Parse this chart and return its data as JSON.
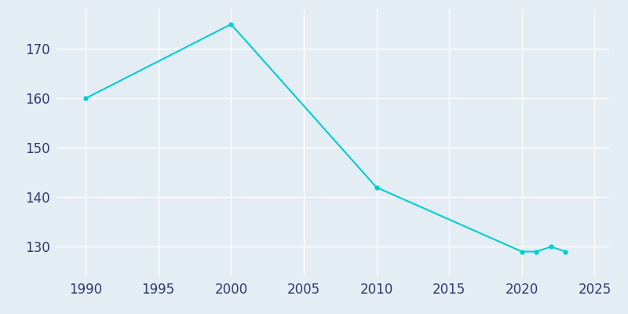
{
  "years": [
    1990,
    2000,
    2010,
    2020,
    2021,
    2022,
    2023
  ],
  "population": [
    160,
    175,
    142,
    129,
    129,
    130,
    129
  ],
  "line_color": "#00CED1",
  "marker": "o",
  "marker_size": 3.5,
  "background_color": "#E4ECF4",
  "grid_color": "#FFFFFF",
  "tick_label_color": "#2E3A6E",
  "xlim": [
    1988,
    2026
  ],
  "ylim": [
    124,
    178
  ],
  "xticks": [
    1990,
    1995,
    2000,
    2005,
    2010,
    2015,
    2020,
    2025
  ],
  "yticks": [
    130,
    140,
    150,
    160,
    170
  ],
  "linewidth": 1.5,
  "tick_fontsize": 12
}
